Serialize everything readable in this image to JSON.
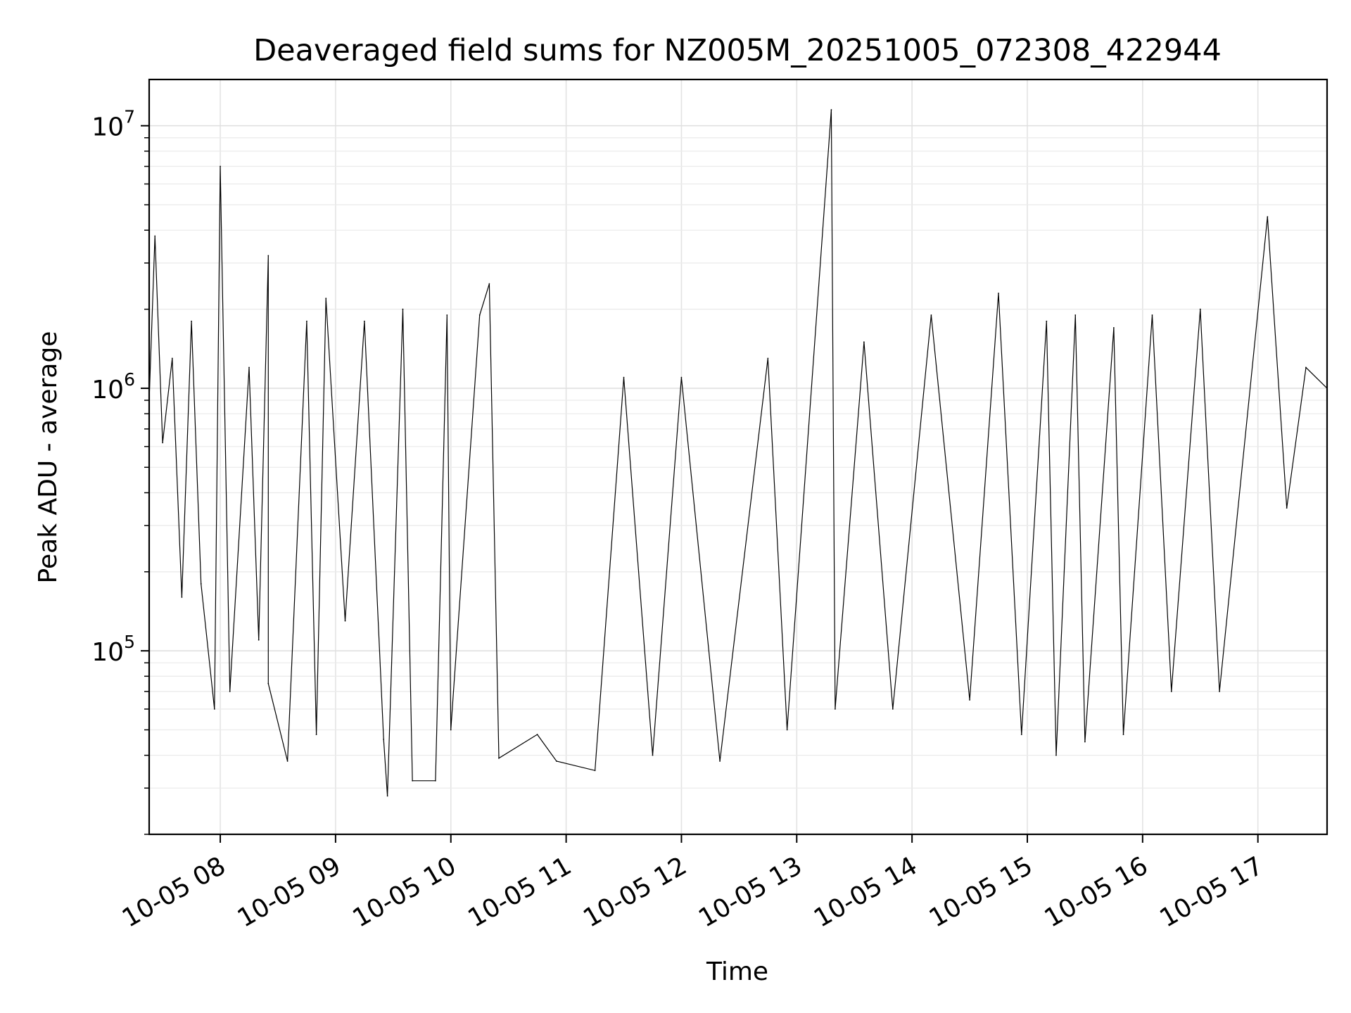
{
  "chart_data": {
    "type": "line",
    "title": "Deaveraged field sums for NZ005M_20251005_072308_422944",
    "xlabel": "Time",
    "ylabel": "Peak ADU - average",
    "yscale": "log",
    "xlim": [
      "2025-10-05 07:23",
      "2025-10-05 17:36"
    ],
    "ylim": [
      20000,
      15000000
    ],
    "grid": true,
    "line_color": "#000000",
    "x_ticks": [
      {
        "label": "10-05 08",
        "time": "2025-10-05 08:00"
      },
      {
        "label": "10-05 09",
        "time": "2025-10-05 09:00"
      },
      {
        "label": "10-05 10",
        "time": "2025-10-05 10:00"
      },
      {
        "label": "10-05 11",
        "time": "2025-10-05 11:00"
      },
      {
        "label": "10-05 12",
        "time": "2025-10-05 12:00"
      },
      {
        "label": "10-05 13",
        "time": "2025-10-05 13:00"
      },
      {
        "label": "10-05 14",
        "time": "2025-10-05 14:00"
      },
      {
        "label": "10-05 15",
        "time": "2025-10-05 15:00"
      },
      {
        "label": "10-05 16",
        "time": "2025-10-05 16:00"
      },
      {
        "label": "10-05 17",
        "time": "2025-10-05 17:00"
      }
    ],
    "y_ticks": [
      {
        "base": "10",
        "exp": "5",
        "value": 100000
      },
      {
        "base": "10",
        "exp": "6",
        "value": 1000000
      },
      {
        "base": "10",
        "exp": "7",
        "value": 10000000
      }
    ],
    "series": [
      {
        "points": [
          [
            "2025-10-05 07:23",
            900000
          ],
          [
            "2025-10-05 07:26",
            3800000
          ],
          [
            "2025-10-05 07:30",
            620000
          ],
          [
            "2025-10-05 07:35",
            1300000
          ],
          [
            "2025-10-05 07:40",
            160000
          ],
          [
            "2025-10-05 07:45",
            1800000
          ],
          [
            "2025-10-05 07:50",
            180000
          ],
          [
            "2025-10-05 07:57",
            60000
          ],
          [
            "2025-10-05 08:00",
            7000000
          ],
          [
            "2025-10-05 08:05",
            70000
          ],
          [
            "2025-10-05 08:15",
            1200000
          ],
          [
            "2025-10-05 08:20",
            110000
          ],
          [
            "2025-10-05 08:25",
            3200000
          ],
          [
            "2025-10-05 08:25",
            75000
          ],
          [
            "2025-10-05 08:35",
            38000
          ],
          [
            "2025-10-05 08:45",
            1800000
          ],
          [
            "2025-10-05 08:50",
            48000
          ],
          [
            "2025-10-05 08:55",
            2200000
          ],
          [
            "2025-10-05 09:05",
            130000
          ],
          [
            "2025-10-05 09:15",
            1800000
          ],
          [
            "2025-10-05 09:25",
            46000
          ],
          [
            "2025-10-05 09:27",
            28000
          ],
          [
            "2025-10-05 09:35",
            2000000
          ],
          [
            "2025-10-05 09:40",
            32000
          ],
          [
            "2025-10-05 09:52",
            32000
          ],
          [
            "2025-10-05 09:58",
            1900000
          ],
          [
            "2025-10-05 10:00",
            50000
          ],
          [
            "2025-10-05 10:15",
            1900000
          ],
          [
            "2025-10-05 10:20",
            2500000
          ],
          [
            "2025-10-05 10:25",
            39000
          ],
          [
            "2025-10-05 10:45",
            48000
          ],
          [
            "2025-10-05 10:55",
            38000
          ],
          [
            "2025-10-05 11:15",
            35000
          ],
          [
            "2025-10-05 11:30",
            1100000
          ],
          [
            "2025-10-05 11:45",
            40000
          ],
          [
            "2025-10-05 12:00",
            1100000
          ],
          [
            "2025-10-05 12:20",
            38000
          ],
          [
            "2025-10-05 12:45",
            1300000
          ],
          [
            "2025-10-05 12:55",
            50000
          ],
          [
            "2025-10-05 13:18",
            11500000
          ],
          [
            "2025-10-05 13:20",
            60000
          ],
          [
            "2025-10-05 13:35",
            1500000
          ],
          [
            "2025-10-05 13:50",
            60000
          ],
          [
            "2025-10-05 14:10",
            1900000
          ],
          [
            "2025-10-05 14:30",
            65000
          ],
          [
            "2025-10-05 14:45",
            2300000
          ],
          [
            "2025-10-05 14:57",
            48000
          ],
          [
            "2025-10-05 15:10",
            1800000
          ],
          [
            "2025-10-05 15:15",
            40000
          ],
          [
            "2025-10-05 15:25",
            1900000
          ],
          [
            "2025-10-05 15:30",
            45000
          ],
          [
            "2025-10-05 15:45",
            1700000
          ],
          [
            "2025-10-05 15:50",
            48000
          ],
          [
            "2025-10-05 16:05",
            1900000
          ],
          [
            "2025-10-05 16:15",
            70000
          ],
          [
            "2025-10-05 16:30",
            2000000
          ],
          [
            "2025-10-05 16:40",
            70000
          ],
          [
            "2025-10-05 17:05",
            4500000
          ],
          [
            "2025-10-05 17:15",
            350000
          ],
          [
            "2025-10-05 17:25",
            1200000
          ],
          [
            "2025-10-05 17:36",
            1000000
          ]
        ]
      }
    ]
  }
}
